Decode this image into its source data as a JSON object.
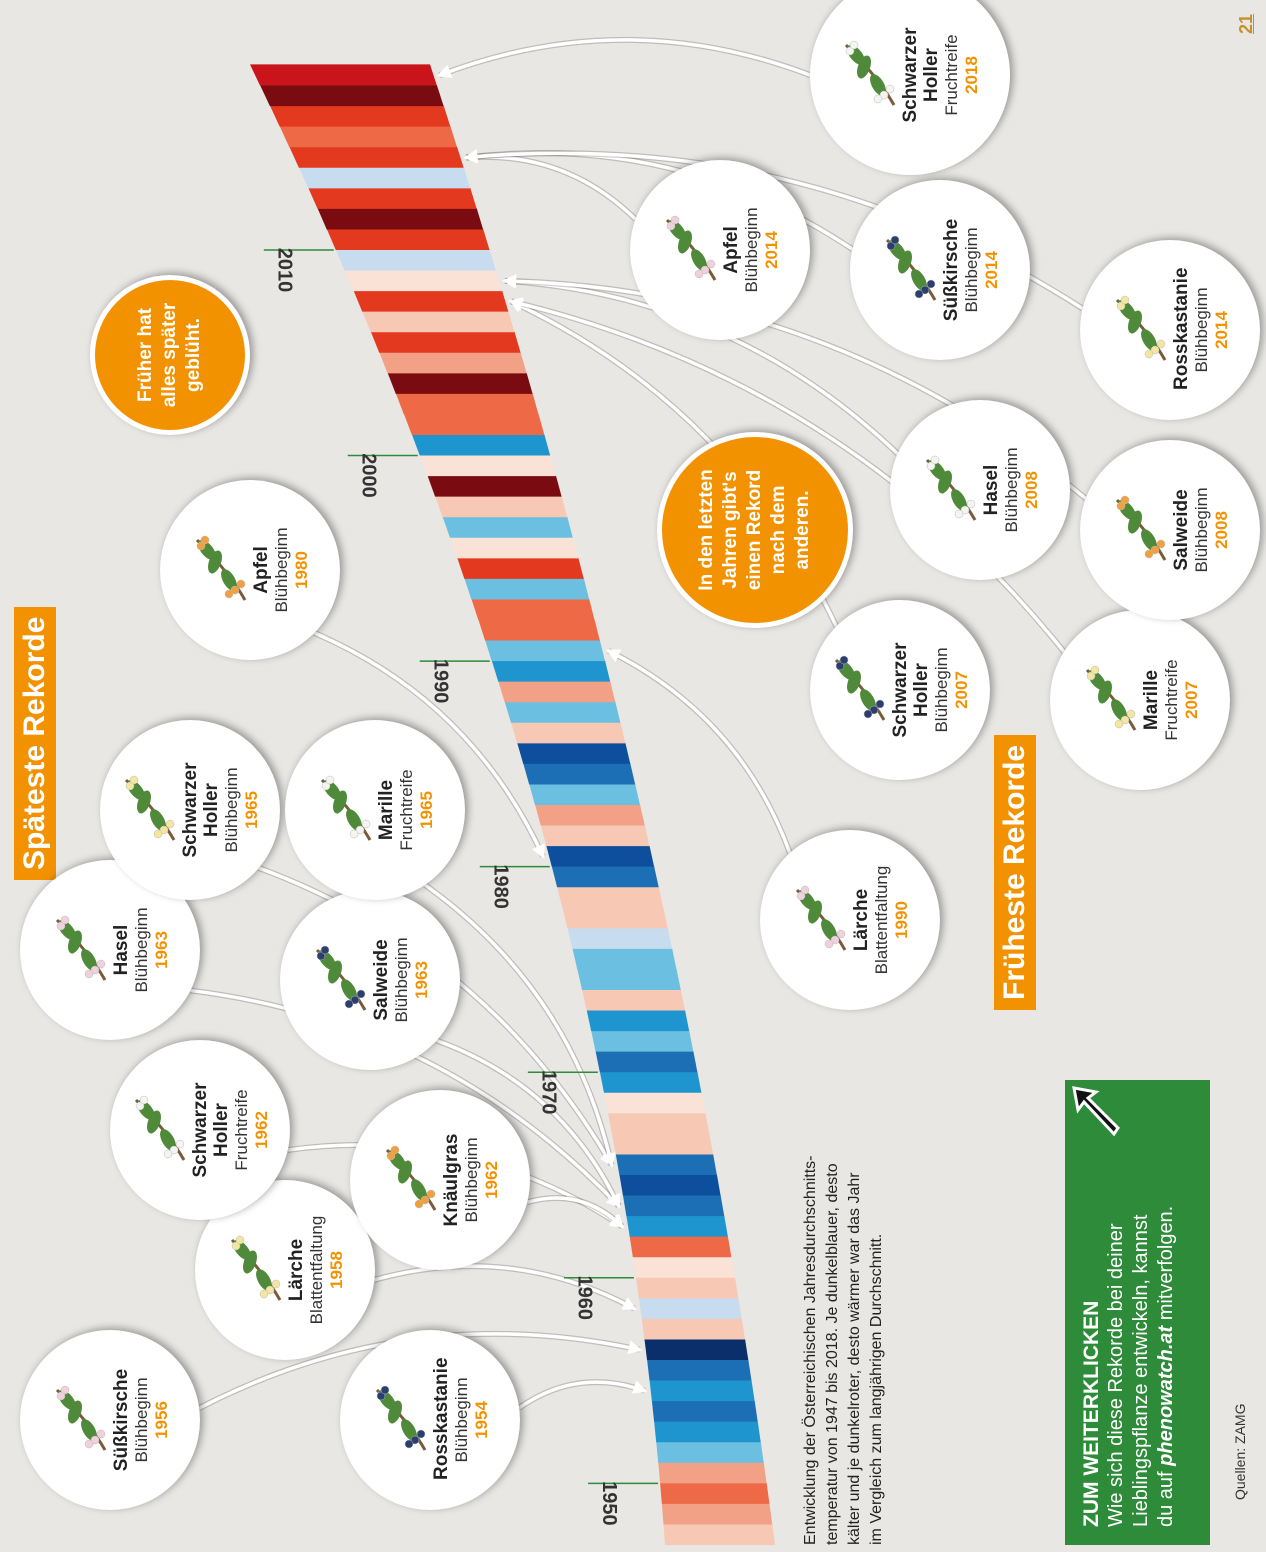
{
  "late_heading": "Späteste Rekorde",
  "early_heading": "Früheste Rekorde",
  "late_records": [
    {
      "name": "Süßkirsche",
      "event": "Blühbeginn",
      "year": 1956
    },
    {
      "name": "Rosskastanie",
      "event": "Blühbeginn",
      "year": 1954
    },
    {
      "name": "Lärche",
      "event": "Blattentfaltung",
      "year": 1958
    },
    {
      "name": "Schwarzer Holler",
      "event": "Fruchtreife",
      "year": 1962
    },
    {
      "name": "Knäulgras",
      "event": "Blühbeginn",
      "year": 1962
    },
    {
      "name": "Hasel",
      "event": "Blühbeginn",
      "year": 1963
    },
    {
      "name": "Salweide",
      "event": "Blühbeginn",
      "year": 1963
    },
    {
      "name": "Schwarzer Holler",
      "event": "Blühbeginn",
      "year": 1965
    },
    {
      "name": "Marille",
      "event": "Fruchtreife",
      "year": 1965
    },
    {
      "name": "Apfel",
      "event": "Blühbeginn",
      "year": 1980
    }
  ],
  "early_records": [
    {
      "name": "Lärche",
      "event": "Blattentfaltung",
      "year": 1990
    },
    {
      "name": "Schwarzer Holler",
      "event": "Blühbeginn",
      "year": 2007
    },
    {
      "name": "Marille",
      "event": "Fruchtreife",
      "year": 2007
    },
    {
      "name": "Hasel",
      "event": "Blühbeginn",
      "year": 2008
    },
    {
      "name": "Salweide",
      "event": "Blühbeginn",
      "year": 2008
    },
    {
      "name": "Apfel",
      "event": "Blühbeginn",
      "year": 2014
    },
    {
      "name": "Süßkirsche",
      "event": "Blühbeginn",
      "year": 2014
    },
    {
      "name": "Rosskastanie",
      "event": "Blühbeginn",
      "year": 2014
    },
    {
      "name": "Schwarzer Holler",
      "event": "Fruchtreife",
      "year": 2018
    }
  ],
  "bubbles": [
    "Früher hat alles später geblüht.",
    "In den letzten Jahren gibt's einen Rekord nach dem anderen."
  ],
  "band": {
    "xlim": [
      1947,
      2019
    ],
    "xticks": [
      1950,
      1960,
      1970,
      1980,
      1990,
      2000,
      2010
    ],
    "colors": [
      "#f7c8b4",
      "#f2a186",
      "#ee6a46",
      "#f2a186",
      "#6bbfe0",
      "#1f95d0",
      "#1c6fb5",
      "#1f95d0",
      "#1c6fb5",
      "#0a2f6b",
      "#f7c8b4",
      "#c7dcee",
      "#f7c8b4",
      "#fbe2d6",
      "#ee6a46",
      "#1f95d0",
      "#1c6fb5",
      "#0d4f9c",
      "#1c6fb5",
      "#f7c8b4",
      "#f7c8b4",
      "#fbe2d6",
      "#1f95d0",
      "#1c6fb5",
      "#6bbfe0",
      "#1f95d0",
      "#f7c8b4",
      "#6bbfe0",
      "#6bbfe0",
      "#c7dcee",
      "#f7c8b4",
      "#f7c8b4",
      "#1c6fb5",
      "#0d4f9c",
      "#f7c8b4",
      "#f2a186",
      "#6bbfe0",
      "#1c6fb5",
      "#0d4f9c",
      "#f7c8b4",
      "#6bbfe0",
      "#f2a186",
      "#1f95d0",
      "#6bbfe0",
      "#ee6a46",
      "#ee6a46",
      "#6bbfe0",
      "#e3391f",
      "#fbe2d6",
      "#6bbfe0",
      "#f7c8b4",
      "#7a0c11",
      "#fbe2d6",
      "#1f95d0",
      "#ee6a46",
      "#ee6a46",
      "#7a0c11",
      "#f2a186",
      "#e3391f",
      "#f7c8b4",
      "#e3391f",
      "#fbe2d6",
      "#c7dcee",
      "#e3391f",
      "#7a0c11",
      "#e3391f",
      "#c7dcee",
      "#e3391f",
      "#ee6a46",
      "#e3391f",
      "#7a0c11",
      "#c8141a"
    ]
  },
  "description": [
    "Entwicklung der Österreichischen Jahresdurchschnitts-",
    "temperatur von 1947 bis 2018. Je dunkelblauer, desto",
    "kälter und je dunkelroter, desto wärmer war das Jahr",
    "im Vergleich zum langjährigen Durchschnitt."
  ],
  "box": {
    "title": "ZUM WEITERKLICKEN",
    "lines": [
      "Wie sich diese Rekorde bei deiner",
      "Lieblingspflanze entwickeln, kannst",
      "du auf"
    ],
    "link": "phenowatch.at",
    "tail": "mitverfolgen."
  },
  "source": "Quellen: ZAMG",
  "page_number": "21"
}
